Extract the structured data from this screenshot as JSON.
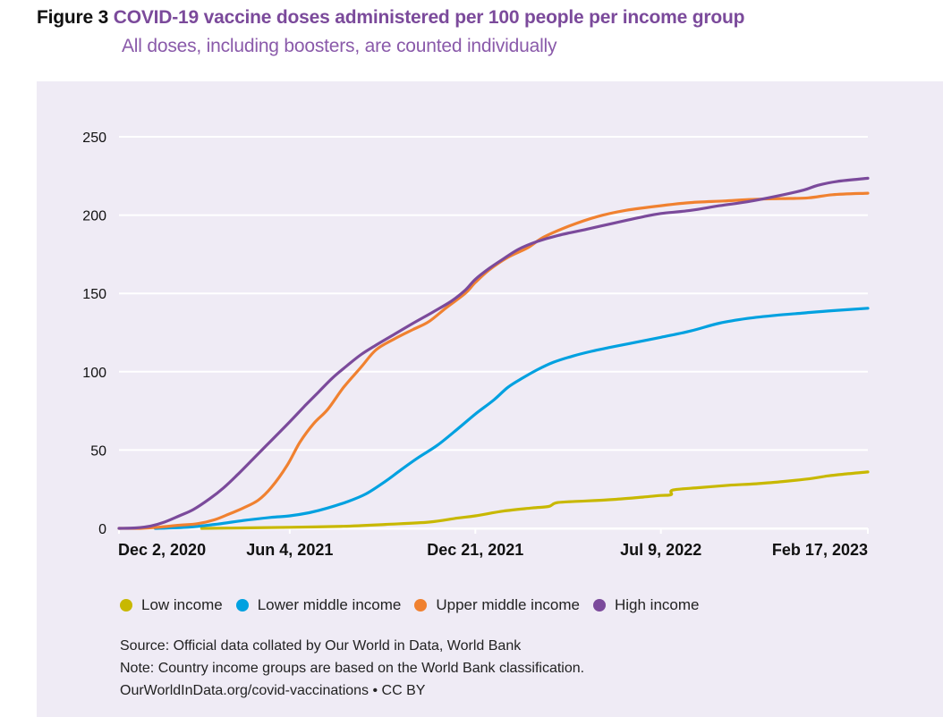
{
  "figure": {
    "label": "Figure 3",
    "title": "COVID-19 vaccine doses administered per 100 people per income group",
    "subtitle": "All doses, including boosters, are counted individually"
  },
  "chart_data": {
    "type": "line",
    "title": "COVID-19 vaccine doses administered per 100 people per income group",
    "subtitle": "All doses, including boosters, are counted individually",
    "xlabel": "",
    "ylabel": "",
    "ylim": [
      0,
      250
    ],
    "xlim": [
      "2020-12-02",
      "2023-02-17"
    ],
    "grid": true,
    "yticks": [
      0,
      50,
      100,
      150,
      200,
      250
    ],
    "xticks": [
      {
        "date": "2020-12-02",
        "label": "Dec 2, 2020"
      },
      {
        "date": "2021-06-04",
        "label": "Jun 4, 2021"
      },
      {
        "date": "2021-12-21",
        "label": "Dec 21, 2021"
      },
      {
        "date": "2022-07-09",
        "label": "Jul 9, 2022"
      },
      {
        "date": "2023-02-17",
        "label": "Feb 17, 2023"
      }
    ],
    "legend_position": "bottom-left",
    "series": [
      {
        "name": "Low income",
        "color": "#c8b800",
        "points": [
          [
            "2021-03-01",
            0
          ],
          [
            "2021-04-15",
            0.3
          ],
          [
            "2021-06-04",
            0.7
          ],
          [
            "2021-08-01",
            1.3
          ],
          [
            "2021-09-15",
            2.5
          ],
          [
            "2021-11-01",
            4
          ],
          [
            "2021-12-01",
            6.5
          ],
          [
            "2021-12-21",
            8
          ],
          [
            "2022-01-20",
            11
          ],
          [
            "2022-02-20",
            13
          ],
          [
            "2022-03-10",
            14
          ],
          [
            "2022-03-20",
            16.5
          ],
          [
            "2022-04-20",
            17.5
          ],
          [
            "2022-05-20",
            18.5
          ],
          [
            "2022-06-20",
            20
          ],
          [
            "2022-07-09",
            21
          ],
          [
            "2022-07-20",
            21.5
          ],
          [
            "2022-07-22",
            24.5
          ],
          [
            "2022-08-20",
            26
          ],
          [
            "2022-09-20",
            27.5
          ],
          [
            "2022-10-20",
            28.5
          ],
          [
            "2022-11-20",
            30
          ],
          [
            "2022-12-20",
            32
          ],
          [
            "2023-01-05",
            33.5
          ],
          [
            "2023-01-20",
            34.5
          ],
          [
            "2023-02-17",
            36
          ]
        ]
      },
      {
        "name": "Lower middle income",
        "color": "#00a1e0",
        "points": [
          [
            "2021-01-10",
            0
          ],
          [
            "2021-02-15",
            0.8
          ],
          [
            "2021-03-15",
            2.5
          ],
          [
            "2021-04-15",
            5
          ],
          [
            "2021-05-15",
            7
          ],
          [
            "2021-06-04",
            8
          ],
          [
            "2021-06-25",
            10
          ],
          [
            "2021-07-15",
            13
          ],
          [
            "2021-08-05",
            17
          ],
          [
            "2021-08-25",
            22
          ],
          [
            "2021-09-15",
            30
          ],
          [
            "2021-10-01",
            37
          ],
          [
            "2021-10-20",
            45
          ],
          [
            "2021-11-10",
            53
          ],
          [
            "2021-12-01",
            63
          ],
          [
            "2021-12-21",
            73
          ],
          [
            "2022-01-10",
            82
          ],
          [
            "2022-01-25",
            90
          ],
          [
            "2022-02-10",
            96
          ],
          [
            "2022-02-25",
            101
          ],
          [
            "2022-03-15",
            106
          ],
          [
            "2022-04-05",
            110
          ],
          [
            "2022-04-25",
            113
          ],
          [
            "2022-05-15",
            115.5
          ],
          [
            "2022-06-05",
            118
          ],
          [
            "2022-07-09",
            122
          ],
          [
            "2022-08-10",
            126
          ],
          [
            "2022-09-10",
            131
          ],
          [
            "2022-10-10",
            134
          ],
          [
            "2022-11-10",
            136
          ],
          [
            "2022-12-10",
            137.5
          ],
          [
            "2023-01-10",
            139
          ],
          [
            "2023-02-17",
            140.5
          ]
        ]
      },
      {
        "name": "Upper middle income",
        "color": "#f08130",
        "points": [
          [
            "2020-12-02",
            0
          ],
          [
            "2020-12-25",
            0
          ],
          [
            "2021-01-15",
            0.8
          ],
          [
            "2021-02-05",
            2
          ],
          [
            "2021-02-25",
            3
          ],
          [
            "2021-03-15",
            5.5
          ],
          [
            "2021-04-01",
            9.5
          ],
          [
            "2021-04-15",
            13
          ],
          [
            "2021-05-01",
            18
          ],
          [
            "2021-05-15",
            26
          ],
          [
            "2021-06-01",
            40
          ],
          [
            "2021-06-15",
            55
          ],
          [
            "2021-06-30",
            67
          ],
          [
            "2021-07-15",
            76
          ],
          [
            "2021-08-01",
            90
          ],
          [
            "2021-08-20",
            103
          ],
          [
            "2021-09-05",
            114
          ],
          [
            "2021-09-25",
            121
          ],
          [
            "2021-10-15",
            127
          ],
          [
            "2021-11-01",
            132
          ],
          [
            "2021-11-20",
            141
          ],
          [
            "2021-12-10",
            150
          ],
          [
            "2021-12-21",
            157
          ],
          [
            "2022-01-05",
            165
          ],
          [
            "2022-01-25",
            173
          ],
          [
            "2022-02-15",
            179
          ],
          [
            "2022-03-05",
            186
          ],
          [
            "2022-04-01",
            193
          ],
          [
            "2022-05-01",
            199
          ],
          [
            "2022-06-01",
            203
          ],
          [
            "2022-07-09",
            206
          ],
          [
            "2022-08-10",
            208
          ],
          [
            "2022-09-15",
            209
          ],
          [
            "2022-10-15",
            210
          ],
          [
            "2022-11-15",
            210.5
          ],
          [
            "2022-12-15",
            211
          ],
          [
            "2023-01-10",
            213
          ],
          [
            "2023-02-17",
            214
          ]
        ]
      },
      {
        "name": "High income",
        "color": "#7b4a9b",
        "points": [
          [
            "2020-12-02",
            0
          ],
          [
            "2020-12-20",
            0.3
          ],
          [
            "2021-01-05",
            1.5
          ],
          [
            "2021-01-20",
            4
          ],
          [
            "2021-02-05",
            8
          ],
          [
            "2021-02-20",
            12
          ],
          [
            "2021-03-10",
            19
          ],
          [
            "2021-03-25",
            26
          ],
          [
            "2021-04-10",
            35
          ],
          [
            "2021-04-25",
            44
          ],
          [
            "2021-05-10",
            53
          ],
          [
            "2021-05-25",
            62
          ],
          [
            "2021-06-04",
            68
          ],
          [
            "2021-06-20",
            78
          ],
          [
            "2021-07-05",
            87
          ],
          [
            "2021-07-20",
            96
          ],
          [
            "2021-08-05",
            104
          ],
          [
            "2021-08-20",
            111
          ],
          [
            "2021-09-05",
            117
          ],
          [
            "2021-09-25",
            124
          ],
          [
            "2021-10-15",
            131
          ],
          [
            "2021-11-05",
            138
          ],
          [
            "2021-11-25",
            145
          ],
          [
            "2021-12-10",
            152
          ],
          [
            "2021-12-21",
            159
          ],
          [
            "2022-01-05",
            166
          ],
          [
            "2022-01-20",
            172
          ],
          [
            "2022-02-05",
            178
          ],
          [
            "2022-02-25",
            183
          ],
          [
            "2022-03-20",
            187
          ],
          [
            "2022-04-20",
            191
          ],
          [
            "2022-05-20",
            195
          ],
          [
            "2022-06-20",
            199
          ],
          [
            "2022-07-09",
            201
          ],
          [
            "2022-08-10",
            203
          ],
          [
            "2022-09-10",
            206
          ],
          [
            "2022-10-10",
            208.5
          ],
          [
            "2022-11-10",
            212
          ],
          [
            "2022-12-10",
            216
          ],
          [
            "2022-12-25",
            219
          ],
          [
            "2023-01-15",
            221.5
          ],
          [
            "2023-02-17",
            223.5
          ]
        ]
      }
    ]
  },
  "legend": [
    {
      "label": "Low income",
      "color": "#c8b800"
    },
    {
      "label": "Lower middle income",
      "color": "#00a1e0"
    },
    {
      "label": "Upper middle income",
      "color": "#f08130"
    },
    {
      "label": "High income",
      "color": "#7b4a9b"
    }
  ],
  "notes": {
    "source": "Source: Official data collated by Our World in Data, World Bank",
    "note": "Note: Country income groups are based on the World Bank classification.",
    "credit": "OurWorldInData.org/covid-vaccinations • CC BY"
  }
}
